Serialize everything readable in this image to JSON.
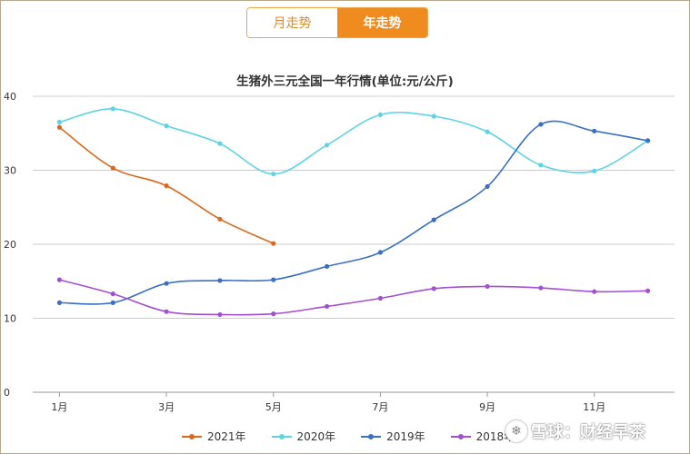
{
  "toggle": {
    "month_label": "月走势",
    "year_label": "年走势"
  },
  "watermark": {
    "text": "雪球：财经早茶"
  },
  "chart_data": {
    "type": "line",
    "title": "生猪外三元全国一年行情(单位:元/公斤)",
    "xlabel": "",
    "ylabel": "",
    "x": [
      1,
      2,
      3,
      4,
      5,
      6,
      7,
      8,
      9,
      10,
      11,
      12
    ],
    "x_tick_values": [
      1,
      3,
      5,
      7,
      9,
      11
    ],
    "x_tick_labels": [
      "1月",
      "3月",
      "5月",
      "7月",
      "9月",
      "11月"
    ],
    "y_ticks": [
      0,
      10,
      20,
      30,
      40
    ],
    "ylim": [
      0,
      40
    ],
    "xlim": [
      0.5,
      12.5
    ],
    "grid": true,
    "legend_position": "bottom",
    "series": [
      {
        "name": "2021年",
        "color": "#d9691c",
        "values": [
          35.8,
          30.3,
          27.9,
          23.4,
          20.1,
          null,
          null,
          null,
          null,
          null,
          null,
          null
        ]
      },
      {
        "name": "2020年",
        "color": "#5ed3e3",
        "values": [
          36.5,
          38.3,
          36.0,
          33.6,
          29.5,
          33.4,
          37.5,
          37.3,
          35.2,
          30.7,
          29.9,
          34.0
        ]
      },
      {
        "name": "2019年",
        "color": "#3a6fc4",
        "values": [
          12.1,
          12.1,
          14.7,
          15.1,
          15.2,
          17.0,
          18.9,
          23.3,
          27.8,
          36.2,
          35.3,
          34.0
        ]
      },
      {
        "name": "2018年",
        "color": "#a24fd1",
        "values": [
          15.2,
          13.3,
          10.9,
          10.5,
          10.6,
          11.6,
          12.7,
          14.0,
          14.3,
          14.1,
          13.6,
          13.7
        ]
      }
    ]
  }
}
